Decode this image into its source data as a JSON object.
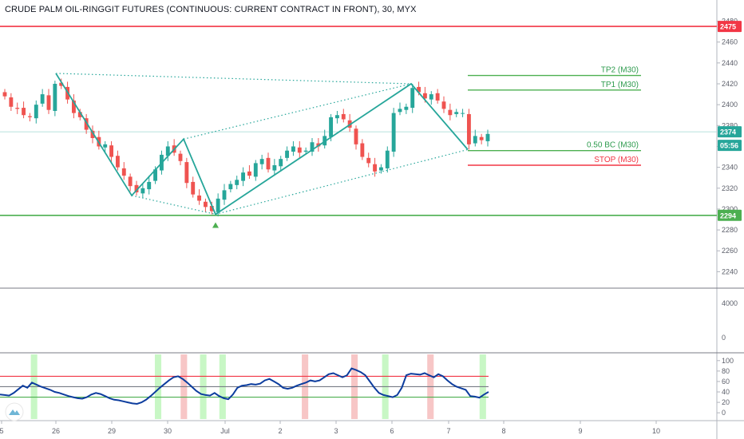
{
  "title": "CRUDE PALM OIL-RINGGIT FUTURES (CONTINUOUS: CURRENT CONTRACT IN FRONT), 30, MYX",
  "colors": {
    "up": "#26a69a",
    "down": "#ef5350",
    "pattern": "#26a69a",
    "green_line": "#4caf50",
    "red_line": "#f23645",
    "indicator": "#0d3d9e",
    "green_zone": "#c8f7c5",
    "red_zone": "#f7c6c6",
    "axis_text": "#5d606b",
    "grid": "#e0e3eb"
  },
  "chart_data": [
    {
      "type": "candlestick",
      "panel": "price",
      "x_tick_labels": [
        "5",
        "26",
        "29",
        "30",
        "Jul",
        "2",
        "3",
        "6",
        "7",
        "8",
        "9",
        "10"
      ],
      "y_ticks": [
        2240,
        2260,
        2280,
        2300,
        2320,
        2340,
        2360,
        2380,
        2400,
        2420,
        2440,
        2460,
        2480
      ],
      "ylim": [
        2225,
        2485
      ],
      "series_close": [
        2408,
        2398,
        2396,
        2390,
        2388,
        2400,
        2410,
        2395,
        2420,
        2418,
        2405,
        2392,
        2388,
        2376,
        2368,
        2360,
        2362,
        2350,
        2340,
        2332,
        2322,
        2316,
        2320,
        2326,
        2338,
        2352,
        2360,
        2354,
        2346,
        2325,
        2314,
        2308,
        2302,
        2298,
        2310,
        2318,
        2324,
        2328,
        2335,
        2332,
        2344,
        2348,
        2338,
        2342,
        2348,
        2356,
        2360,
        2354,
        2356,
        2364,
        2360,
        2370,
        2388,
        2390,
        2386,
        2378,
        2362,
        2350,
        2344,
        2336,
        2340,
        2356,
        2392,
        2396,
        2398,
        2416,
        2412,
        2406,
        2410,
        2404,
        2396,
        2390,
        2393,
        2392,
        2362,
        2370,
        2366,
        2372
      ],
      "horizontal_levels": [
        {
          "label": "TP2 (M30)",
          "value": 2428
        },
        {
          "label": "TP1 (M30)",
          "value": 2414
        },
        {
          "label": "0.50 BC (M30)",
          "value": 2356
        },
        {
          "label": "STOP (M30)",
          "value": 2342
        }
      ],
      "pattern_points": [
        2430,
        2313,
        2367,
        2295,
        2420,
        2357
      ],
      "full_width_levels": [
        2475,
        2294
      ],
      "price_labels": [
        {
          "text": "2475",
          "value": 2475
        },
        {
          "text": "2374",
          "value": 2374
        },
        {
          "text": "05:56",
          "value": 2361
        },
        {
          "text": "2294",
          "value": 2294
        }
      ]
    },
    {
      "type": "line",
      "panel": "oscillator",
      "name": "",
      "y_ticks": [
        0,
        20,
        40,
        60,
        80,
        100
      ],
      "y_tick_labels": [
        "0",
        "20",
        "40",
        "60",
        "80",
        "100"
      ],
      "ylim": [
        -12,
        115
      ],
      "levels": [
        70,
        50,
        30
      ],
      "values": [
        35,
        34,
        33,
        38,
        45,
        52,
        48,
        58,
        54,
        50,
        47,
        44,
        40,
        38,
        35,
        32,
        30,
        28,
        27,
        30,
        35,
        38,
        36,
        32,
        28,
        25,
        24,
        22,
        20,
        18,
        17,
        20,
        25,
        32,
        40,
        48,
        55,
        62,
        68,
        70,
        65,
        58,
        50,
        42,
        36,
        34,
        33,
        38,
        32,
        28,
        26,
        35,
        48,
        52,
        53,
        55,
        54,
        56,
        62,
        65,
        60,
        55,
        48,
        46,
        48,
        52,
        55,
        58,
        62,
        60,
        62,
        68,
        74,
        76,
        72,
        68,
        72,
        85,
        82,
        78,
        72,
        60,
        48,
        38,
        34,
        32,
        30,
        34,
        48,
        72,
        75,
        74,
        73,
        76,
        72,
        68,
        74,
        70,
        62,
        55,
        50,
        47,
        44,
        32,
        31,
        29,
        35,
        40
      ],
      "zones": [
        {
          "color": "green",
          "start": 0.043,
          "end": 0.052
        },
        {
          "color": "green",
          "start": 0.216,
          "end": 0.225
        },
        {
          "color": "red",
          "start": 0.252,
          "end": 0.261
        },
        {
          "color": "green",
          "start": 0.279,
          "end": 0.288
        },
        {
          "color": "green",
          "start": 0.306,
          "end": 0.315
        },
        {
          "color": "red",
          "start": 0.421,
          "end": 0.43
        },
        {
          "color": "red",
          "start": 0.49,
          "end": 0.499
        },
        {
          "color": "green",
          "start": 0.533,
          "end": 0.542
        },
        {
          "color": "red",
          "start": 0.596,
          "end": 0.605
        },
        {
          "color": "green",
          "start": 0.669,
          "end": 0.678
        }
      ]
    },
    {
      "type": "bar",
      "panel": "volume",
      "y_ticks": [
        0,
        4000
      ],
      "y_tick_labels": [
        "0",
        "4000"
      ],
      "values": []
    }
  ]
}
